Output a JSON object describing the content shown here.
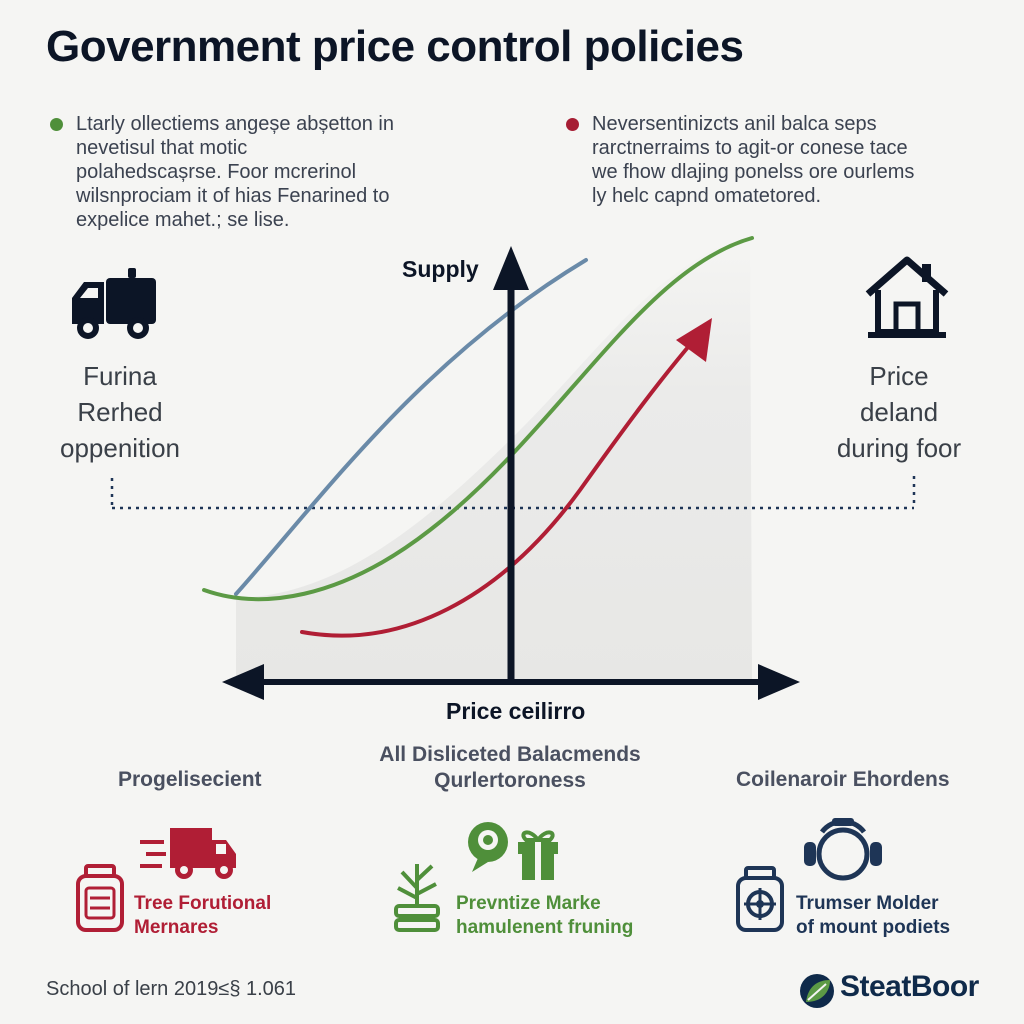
{
  "title": "Government price control policies",
  "notes": {
    "left": {
      "color": "#4f8f3a",
      "lines": [
        "Ltarly ollectiems angeșe abșetton in",
        "nevetisul that motic",
        "polahedscașrse. Foor mcrerinol",
        "wilsnprociam it of hias Fenarined to",
        "expelice mahet.; se lise."
      ]
    },
    "right": {
      "color": "#a61d33",
      "lines": [
        "Neversentinizcts anil balca seps",
        "rarctnerraims to agit-or conese tace",
        "we fhow dlajing ponelss ore ourlems",
        "ly helc capnd omatetored."
      ]
    }
  },
  "side_labels": {
    "left": [
      "Furina",
      "Rerhed",
      "oppenition"
    ],
    "right": [
      "Price",
      "deland",
      "during foor"
    ]
  },
  "icons": {
    "left_top": "delivery-truck-icon",
    "right_top": "house-icon",
    "col1": [
      "fast-truck-icon",
      "jar-icon"
    ],
    "col2": [
      "search-chat-icon",
      "gift-box-icon",
      "plant-icon"
    ],
    "col3": [
      "headset-icon",
      "gear-jar-icon"
    ],
    "brand": "leaf-logo-icon"
  },
  "chart": {
    "y_axis_label": "Supply",
    "x_axis_label": "Price ceilirro",
    "colors": {
      "blue": "#6a8aa8",
      "green": "#5c9a45",
      "red": "#b01e35",
      "axis": "#0c1526",
      "area": "#e9e9e7"
    }
  },
  "mid_caption": [
    "All Disliceted Balacmends",
    "Qurlertoroness"
  ],
  "columns": [
    {
      "head": "Progelisecient",
      "text": [
        "Tree Forutional",
        "Mernares"
      ],
      "color": "#b01e35"
    },
    {
      "head": "",
      "text": [
        "Prevntize Marke",
        "hamulenent fruning"
      ],
      "color": "#4f8f3a"
    },
    {
      "head": "Coilenaroir Ehordens",
      "text": [
        "Trumser Molder",
        "of mount podiets"
      ],
      "color": "#1e3556"
    }
  ],
  "footer": "School of lern 2019≤§ 1.061",
  "brand": "SteatBoor"
}
